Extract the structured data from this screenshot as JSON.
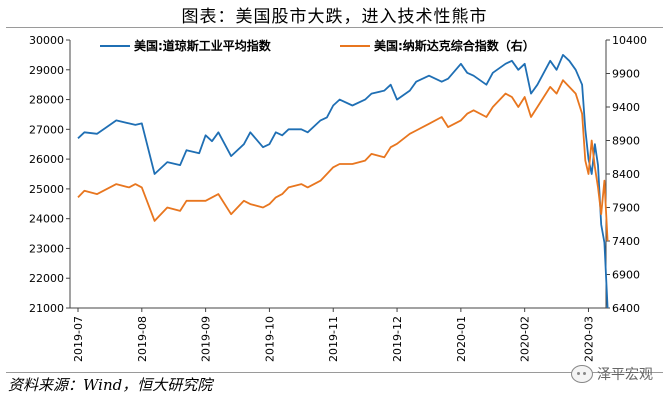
{
  "title": "图表：美国股市大跌，进入技术性熊市",
  "source": "资料来源：Wind，恒大研究院",
  "watermark": "泽平宏观",
  "chart_data": {
    "type": "line",
    "x_categories": [
      "2019-07",
      "2019-08",
      "2019-09",
      "2019-10",
      "2019-11",
      "2019-12",
      "2020-01",
      "2020-02",
      "2020-03"
    ],
    "yaxis_left": {
      "min": 21000,
      "max": 30000,
      "step": 1000,
      "ticks": [
        "21000",
        "22000",
        "23000",
        "24000",
        "25000",
        "26000",
        "27000",
        "28000",
        "29000",
        "30000"
      ]
    },
    "yaxis_right": {
      "min": 6400,
      "max": 10400,
      "step": 500,
      "ticks": [
        "6400",
        "6900",
        "7400",
        "7900",
        "8400",
        "8900",
        "9400",
        "9900",
        "10400"
      ]
    },
    "legend_position": "top",
    "series": [
      {
        "name": "美国:道琼斯工业平均指数",
        "axis": "left",
        "color": "#1f6fb4",
        "x": [
          0,
          0.1,
          0.3,
          0.6,
          0.8,
          0.9,
          1.0,
          1.2,
          1.4,
          1.6,
          1.7,
          1.9,
          2.0,
          2.1,
          2.2,
          2.4,
          2.6,
          2.7,
          2.9,
          3.0,
          3.1,
          3.2,
          3.3,
          3.5,
          3.6,
          3.8,
          3.9,
          4.0,
          4.1,
          4.3,
          4.5,
          4.6,
          4.8,
          4.9,
          5.0,
          5.2,
          5.3,
          5.5,
          5.7,
          5.8,
          6.0,
          6.1,
          6.2,
          6.4,
          6.5,
          6.7,
          6.8,
          6.9,
          7.0,
          7.1,
          7.2,
          7.4,
          7.5,
          7.6,
          7.7,
          7.8,
          7.9,
          7.95,
          8.0,
          8.05,
          8.1,
          8.15,
          8.2,
          8.25,
          8.3
        ],
        "values": [
          26700,
          26900,
          26850,
          27300,
          27200,
          27150,
          27200,
          25500,
          25900,
          25800,
          26300,
          26200,
          26800,
          26600,
          26900,
          26100,
          26500,
          26900,
          26400,
          26500,
          26900,
          26800,
          27000,
          27000,
          26900,
          27300,
          27400,
          27800,
          28000,
          27800,
          28000,
          28200,
          28300,
          28500,
          28000,
          28300,
          28600,
          28800,
          28600,
          28700,
          29200,
          28900,
          28800,
          28500,
          28900,
          29200,
          29300,
          29000,
          29200,
          28200,
          28500,
          29300,
          29000,
          29500,
          29300,
          29000,
          28500,
          27000,
          26000,
          25500,
          26500,
          25800,
          23800,
          23200,
          21000
        ]
      },
      {
        "name": "美国:纳斯达克综合指数（右）",
        "axis": "right",
        "color": "#e8761f",
        "x": [
          0,
          0.1,
          0.3,
          0.6,
          0.8,
          0.9,
          1.0,
          1.2,
          1.4,
          1.6,
          1.7,
          1.9,
          2.0,
          2.1,
          2.2,
          2.4,
          2.6,
          2.7,
          2.9,
          3.0,
          3.1,
          3.2,
          3.3,
          3.5,
          3.6,
          3.8,
          3.9,
          4.0,
          4.1,
          4.3,
          4.5,
          4.6,
          4.8,
          4.9,
          5.0,
          5.2,
          5.3,
          5.5,
          5.7,
          5.8,
          6.0,
          6.1,
          6.2,
          6.4,
          6.5,
          6.7,
          6.8,
          6.9,
          7.0,
          7.1,
          7.2,
          7.4,
          7.5,
          7.6,
          7.7,
          7.8,
          7.9,
          7.95,
          8.0,
          8.05,
          8.1,
          8.15,
          8.2,
          8.25,
          8.3
        ],
        "values": [
          8050,
          8150,
          8100,
          8250,
          8200,
          8250,
          8200,
          7700,
          7900,
          7850,
          8000,
          8000,
          8000,
          8050,
          8100,
          7800,
          8000,
          7950,
          7900,
          7950,
          8050,
          8100,
          8200,
          8250,
          8200,
          8300,
          8400,
          8500,
          8550,
          8550,
          8600,
          8700,
          8650,
          8800,
          8850,
          9000,
          9050,
          9150,
          9250,
          9100,
          9200,
          9300,
          9350,
          9250,
          9400,
          9600,
          9550,
          9400,
          9550,
          9250,
          9400,
          9700,
          9600,
          9800,
          9700,
          9600,
          9300,
          8600,
          8400,
          8900,
          8500,
          8200,
          7800,
          8300,
          7400
        ]
      }
    ]
  }
}
